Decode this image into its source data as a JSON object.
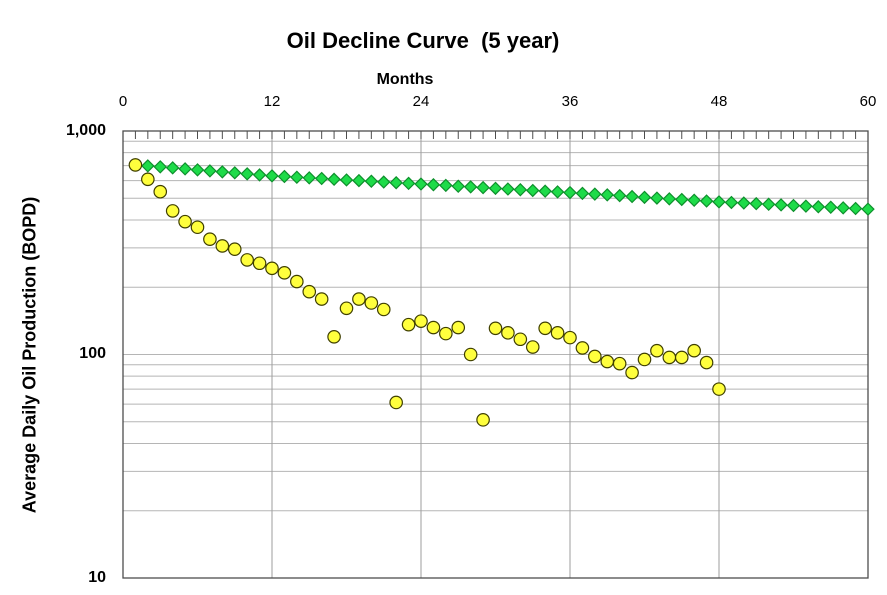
{
  "title": "Oil Decline Curve  (5 year)",
  "chart_data": {
    "type": "scatter",
    "title": "Oil Decline Curve  (5 year)",
    "x_axis": {
      "label": "Months",
      "min": 0,
      "max": 60,
      "position": "top",
      "major_tick_labels": [
        "0",
        "12",
        "24",
        "36",
        "48",
        "60"
      ],
      "major_tick_values": [
        0,
        12,
        24,
        36,
        48,
        60
      ],
      "minor_tick_unit": 1
    },
    "y_axis": {
      "label": "Average Daily Oil Production (BOPD)",
      "scale": "log",
      "min": 10,
      "max": 1000,
      "tick_labels": [
        "1,000",
        "100",
        "10"
      ],
      "tick_values": [
        1000,
        100,
        10
      ]
    },
    "grid": {
      "vertical_at_months": [
        12,
        24,
        36,
        48
      ],
      "horizontal_at_values": [
        900,
        800,
        700,
        600,
        500,
        400,
        300,
        200,
        100,
        90,
        80,
        70,
        60,
        50,
        40,
        30,
        20
      ]
    },
    "legend": "none",
    "series": [
      {
        "name": "smooth-decline-curve",
        "marker": "diamond",
        "fill_color": "#1edb49",
        "border_color": "#0e8f2c",
        "x": [
          1,
          2,
          3,
          4,
          5,
          6,
          7,
          8,
          9,
          10,
          11,
          12,
          13,
          14,
          15,
          16,
          17,
          18,
          19,
          20,
          21,
          22,
          23,
          24,
          25,
          26,
          27,
          28,
          29,
          30,
          31,
          32,
          33,
          34,
          35,
          36,
          37,
          38,
          39,
          40,
          41,
          42,
          43,
          44,
          45,
          46,
          47,
          48,
          49,
          50,
          51,
          52,
          53,
          54,
          55,
          56,
          57,
          58,
          59,
          60
        ],
        "y": [
          705,
          698,
          691,
          684,
          677,
          670,
          663,
          656,
          650,
          643,
          636,
          630,
          626,
          621,
          617,
          613,
          608,
          604,
          600,
          596,
          591,
          587,
          583,
          579,
          575,
          571,
          566,
          562,
          558,
          554,
          550,
          546,
          542,
          538,
          534,
          530,
          526,
          522,
          518,
          514,
          509,
          505,
          501,
          497,
          494,
          490,
          486,
          482,
          479,
          476,
          473,
          470,
          467,
          464,
          461,
          458,
          456,
          453,
          450,
          447
        ]
      },
      {
        "name": "actual-monthly-production",
        "marker": "circle",
        "fill_color": "#ffff3d",
        "border_color": "#3f3f00",
        "x": [
          1,
          2,
          3,
          4,
          5,
          6,
          7,
          8,
          9,
          10,
          11,
          12,
          13,
          14,
          15,
          16,
          17,
          18,
          19,
          20,
          21,
          22,
          23,
          24,
          25,
          26,
          27,
          28,
          29,
          30,
          31,
          32,
          33,
          34,
          35,
          36,
          37,
          38,
          39,
          40,
          41,
          42,
          43,
          44,
          45,
          46,
          47,
          48
        ],
        "y": [
          705,
          608,
          535,
          439,
          393,
          371,
          328,
          306,
          296,
          265,
          256,
          243,
          232,
          212,
          191,
          177,
          120,
          161,
          177,
          170,
          159,
          61,
          136,
          141,
          132,
          124,
          132,
          100,
          51,
          131,
          125,
          117,
          108,
          131,
          125,
          119,
          107,
          98,
          93,
          91,
          83,
          95,
          104,
          97,
          97,
          104,
          92,
          70
        ]
      }
    ]
  },
  "colors": {
    "background": "#ffffff",
    "plot_border": "#4d4d4d",
    "gridline_horizontal": "#b5b5b5",
    "gridline_vertical": "#9e9e9e",
    "tick": "#4d4d4d",
    "text": "#000000"
  }
}
